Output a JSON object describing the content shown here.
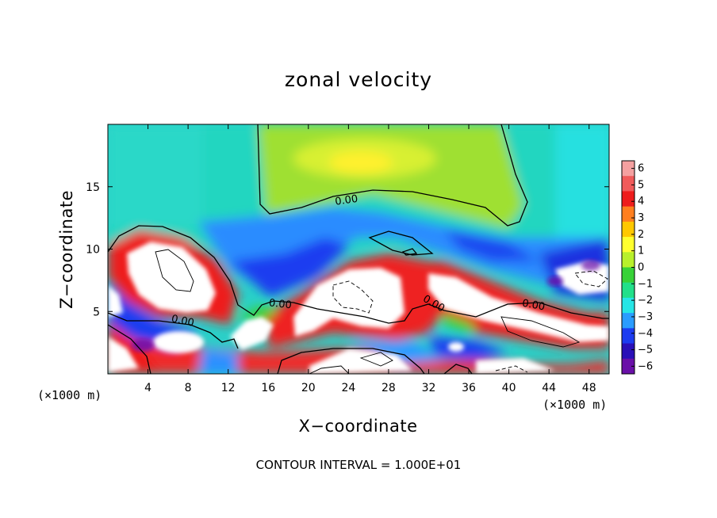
{
  "chart_data": {
    "type": "heatmap",
    "title": "zonal velocity",
    "xlabel": "X−coordinate",
    "ylabel": "Z−coordinate",
    "x_units": "(×1000 m)",
    "xlim": [
      0,
      50
    ],
    "ylim": [
      0,
      20
    ],
    "x_ticks": [
      4,
      8,
      12,
      16,
      20,
      24,
      28,
      32,
      36,
      40,
      44,
      48
    ],
    "y_ticks": [
      5,
      10,
      15
    ],
    "colorbar": {
      "ticks": [
        6,
        5,
        4,
        3,
        2,
        1,
        0,
        -1,
        -2,
        -3,
        -4,
        -5,
        -6
      ],
      "range": [
        -6,
        6
      ],
      "colors": [
        "#f4a0a0",
        "#f05a5a",
        "#ee1c1c",
        "#ff7f1f",
        "#ffc800",
        "#ffff2e",
        "#b8f02c",
        "#38d238",
        "#22e08a",
        "#26e6e6",
        "#2a9cff",
        "#1c3cf0",
        "#2a10b8",
        "#6a10a8"
      ]
    },
    "contour_labels": [
      "0.00",
      "0.00",
      "0.00",
      "0.00",
      "0.00"
    ],
    "footnote": "CONTOUR INTERVAL = 1.000E+01"
  }
}
